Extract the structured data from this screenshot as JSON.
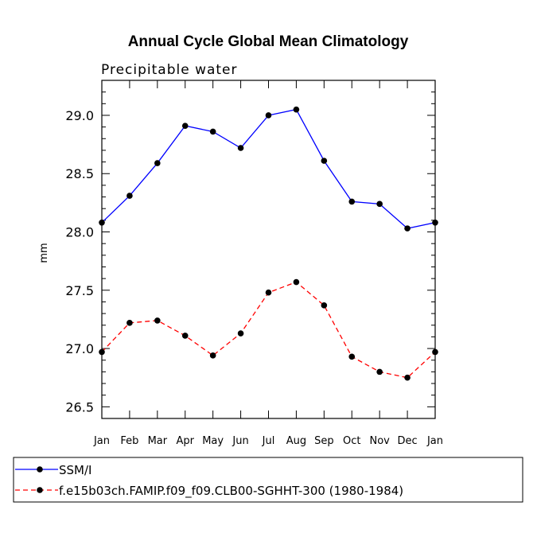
{
  "chart_data": {
    "type": "line",
    "title": "Annual Cycle Global Mean Climatology",
    "subtitle": "Precipitable water",
    "xlabel": "",
    "ylabel": "mm",
    "categories": [
      "Jan",
      "Feb",
      "Mar",
      "Apr",
      "May",
      "Jun",
      "Jul",
      "Aug",
      "Sep",
      "Oct",
      "Nov",
      "Dec",
      "Jan"
    ],
    "ylim": [
      26.4,
      29.3
    ],
    "yticks": [
      26.5,
      27.0,
      27.5,
      28.0,
      28.5,
      29.0
    ],
    "ytick_labels": [
      "26.5",
      "27.0",
      "27.5",
      "28.0",
      "28.5",
      "29.0"
    ],
    "grid": false,
    "legend_position": "bottom",
    "series": [
      {
        "name": "SSM/I",
        "color": "#0000ff",
        "line_style": "solid",
        "marker": "filled-circle",
        "values": [
          28.08,
          28.31,
          28.59,
          28.91,
          28.86,
          28.72,
          29.0,
          29.05,
          28.61,
          28.26,
          28.24,
          28.03,
          28.08
        ]
      },
      {
        "name": "f.e15b03ch.FAMIP.f09_f09.CLB00-SGHHT-300 (1980-1984)",
        "color": "#ff0000",
        "line_style": "dashed",
        "marker": "filled-circle",
        "values": [
          26.97,
          27.22,
          27.24,
          27.11,
          26.94,
          27.13,
          27.48,
          27.57,
          27.37,
          26.93,
          26.8,
          26.75,
          26.97
        ]
      }
    ]
  }
}
